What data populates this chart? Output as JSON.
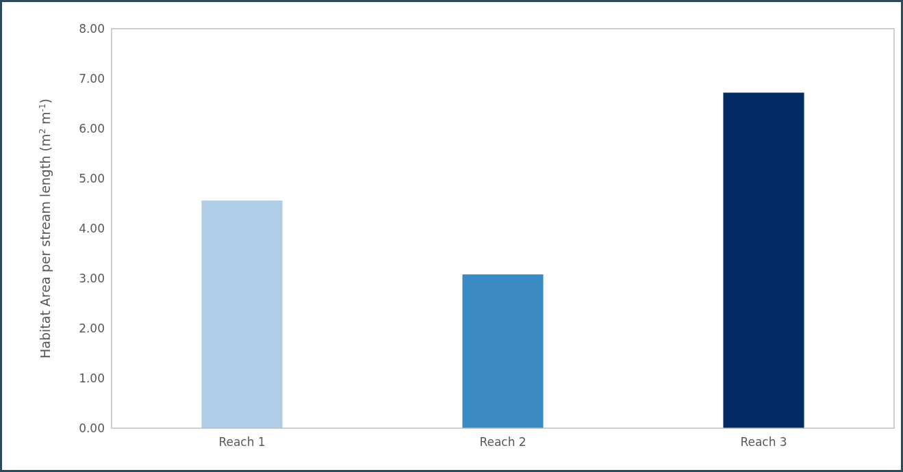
{
  "chart_data": {
    "type": "bar",
    "ylabel": "Habitat Area per stream length (m$^{2}$ m$^{-1}$)",
    "categories": [
      "Reach 1",
      "Reach 2",
      "Reach 3"
    ],
    "values": [
      4.56,
      3.08,
      6.72
    ],
    "colors": [
      "#afcde6",
      "#3c8ac4",
      "#052b65"
    ],
    "ylim": [
      0,
      8
    ],
    "yticks": [
      {
        "value": 0,
        "label": "0.00"
      },
      {
        "value": 1,
        "label": "1.00"
      },
      {
        "value": 2,
        "label": "2.00"
      },
      {
        "value": 3,
        "label": "3.00"
      },
      {
        "value": 4,
        "label": "4.00"
      },
      {
        "value": 5,
        "label": "5.00"
      },
      {
        "value": 6,
        "label": "6.00"
      },
      {
        "value": 7,
        "label": "7.00"
      },
      {
        "value": 8,
        "label": "8.00"
      }
    ],
    "grid": false
  }
}
